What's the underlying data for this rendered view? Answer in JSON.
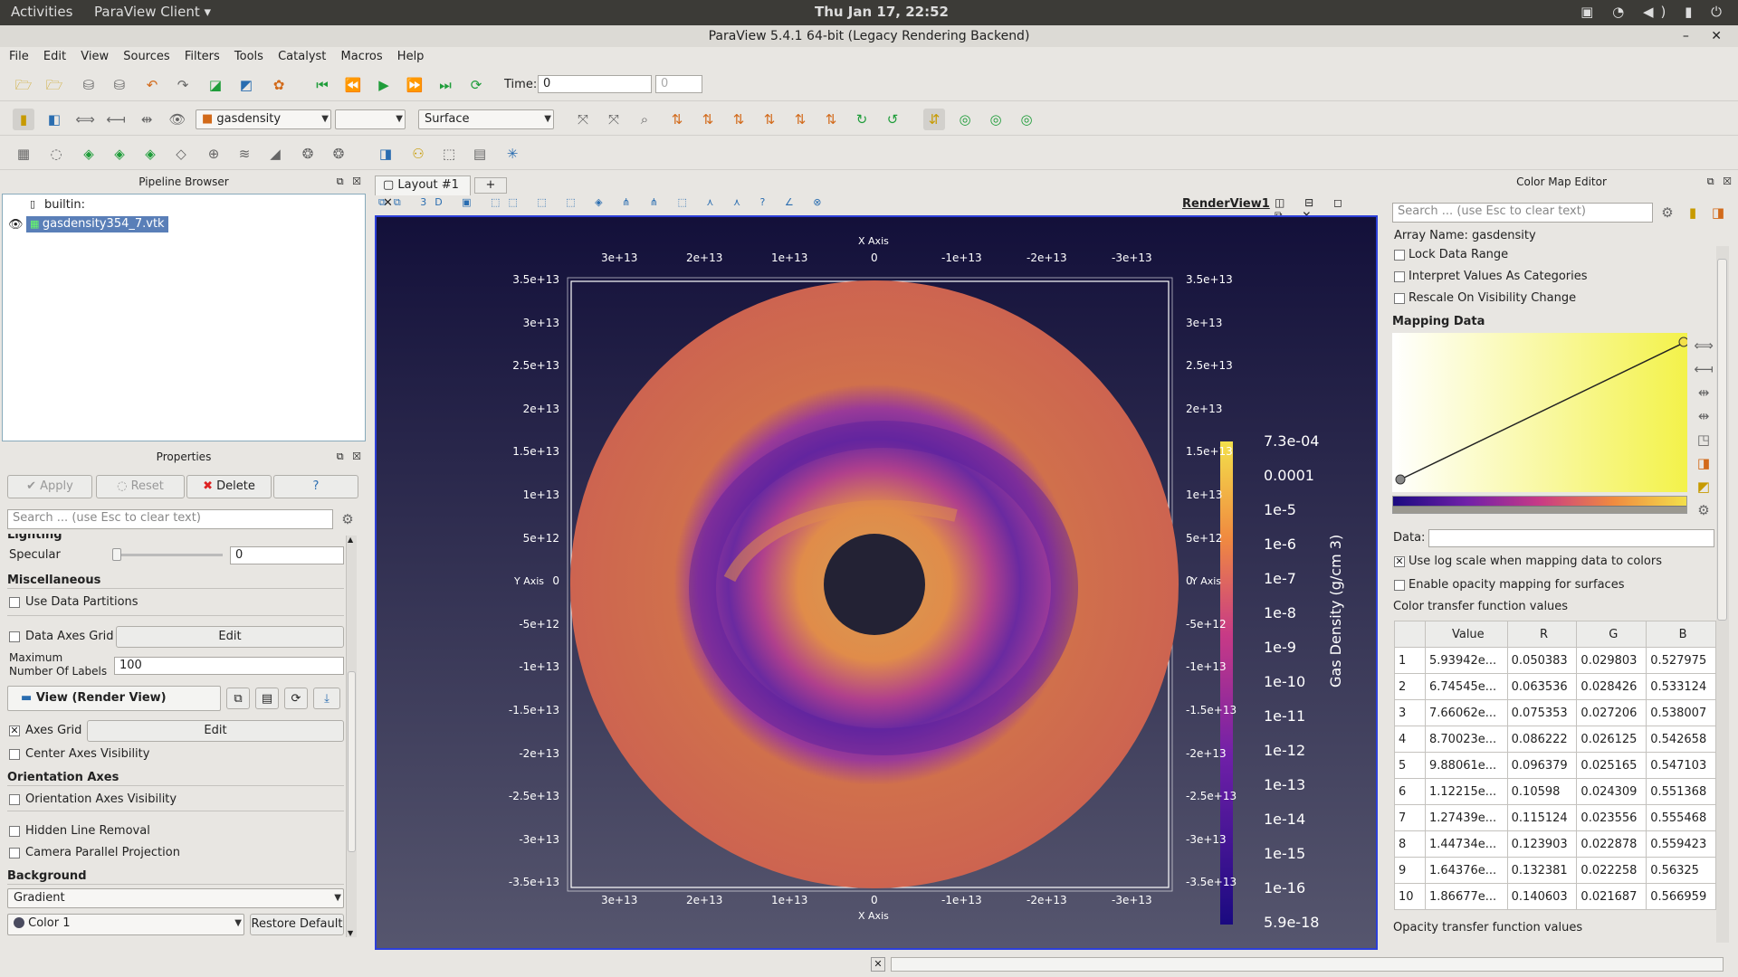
{
  "os_bar": {
    "activities": "Activities",
    "app": "ParaView Client",
    "clock": "Thu Jan 17, 22:52"
  },
  "window": {
    "title": "ParaView 5.4.1 64-bit (Legacy Rendering Backend)"
  },
  "menu": [
    "File",
    "Edit",
    "View",
    "Sources",
    "Filters",
    "Tools",
    "Catalyst",
    "Macros",
    "Help"
  ],
  "time": {
    "label": "Time:",
    "value": "0",
    "index": "0"
  },
  "toolbar2": {
    "array": "gasdensity",
    "component": "",
    "representation": "Surface"
  },
  "pipeline": {
    "title": "Pipeline Browser",
    "root": "builtin:",
    "item": "gasdensity354_7.vtk"
  },
  "properties": {
    "title": "Properties",
    "apply": "Apply",
    "reset": "Reset",
    "delete": "Delete",
    "help": "?",
    "search_placeholder": "Search ... (use Esc to clear text)",
    "lighting": "Lighting",
    "specular_label": "Specular",
    "specular_value": "0",
    "misc": "Miscellaneous",
    "use_partitions": "Use Data Partitions",
    "data_axes_grid": "Data Axes Grid",
    "edit": "Edit",
    "max_labels_1": "Maximum",
    "max_labels_2": "Number Of Labels",
    "max_labels_value": "100",
    "view_header": "View (Render View)",
    "axes_grid": "Axes Grid",
    "center_axes": "Center Axes Visibility",
    "orientation_axes": "Orientation Axes",
    "orientation_vis": "Orientation Axes Visibility",
    "hidden_line": "Hidden Line Removal",
    "camera_parallel": "Camera Parallel Projection",
    "background": "Background",
    "background_value": "Gradient",
    "color1": "Color 1",
    "restore_default": "Restore Default"
  },
  "layout": {
    "tab": "Layout #1",
    "add": "+",
    "view_name": "RenderView1"
  },
  "render": {
    "x_axis": "X Axis",
    "y_axis": "Y Axis",
    "x_ticks": [
      "3e+13",
      "2e+13",
      "1e+13",
      "0",
      "-1e+13",
      "-2e+13",
      "-3e+13"
    ],
    "y_ticks": [
      "3.5e+13",
      "3e+13",
      "2.5e+13",
      "2e+13",
      "1.5e+13",
      "1e+13",
      "5e+12",
      "0",
      "-5e+12",
      "-1e+13",
      "-1.5e+13",
      "-2e+13",
      "-2.5e+13",
      "-3e+13",
      "-3.5e+13"
    ],
    "colorbar_title": "Gas Density (g/cm 3)",
    "colorbar_labels": [
      "7.3e-04",
      "0.0001",
      "1e-5",
      "1e-6",
      "1e-7",
      "1e-8",
      "1e-9",
      "1e-10",
      "1e-11",
      "1e-12",
      "1e-13",
      "1e-14",
      "1e-15",
      "1e-16",
      "5.9e-18"
    ],
    "colors": {
      "disk": "#cd6450",
      "low": "#3a0a8a",
      "high": "#f3e04a"
    }
  },
  "cmap": {
    "title": "Color Map Editor",
    "search_placeholder": "Search ... (use Esc to clear text)",
    "array_name": "Array Name: gasdensity",
    "lock": "Lock Data Range",
    "categories": "Interpret Values As Categories",
    "rescale": "Rescale On Visibility Change",
    "mapping": "Mapping Data",
    "data_label": "Data:",
    "log_scale": "Use log scale when mapping data to colors",
    "opacity_mapping": "Enable opacity mapping for surfaces",
    "ctf_title": "Color transfer function values",
    "columns": [
      "Value",
      "R",
      "G",
      "B"
    ],
    "rows": [
      [
        "1",
        "5.93942e...",
        "0.050383",
        "0.029803",
        "0.527975"
      ],
      [
        "2",
        "6.74545e...",
        "0.063536",
        "0.028426",
        "0.533124"
      ],
      [
        "3",
        "7.66062e...",
        "0.075353",
        "0.027206",
        "0.538007"
      ],
      [
        "4",
        "8.70023e...",
        "0.086222",
        "0.026125",
        "0.542658"
      ],
      [
        "5",
        "9.88061e...",
        "0.096379",
        "0.025165",
        "0.547103"
      ],
      [
        "6",
        "1.12215e...",
        "0.10598",
        "0.024309",
        "0.551368"
      ],
      [
        "7",
        "1.27439e...",
        "0.115124",
        "0.023556",
        "0.555468"
      ],
      [
        "8",
        "1.44734e...",
        "0.123903",
        "0.022878",
        "0.559423"
      ],
      [
        "9",
        "1.64376e...",
        "0.132381",
        "0.022258",
        "0.56325"
      ],
      [
        "10",
        "1.86677e...",
        "0.140603",
        "0.021687",
        "0.566959"
      ]
    ],
    "otf_title": "Opacity transfer function values"
  }
}
